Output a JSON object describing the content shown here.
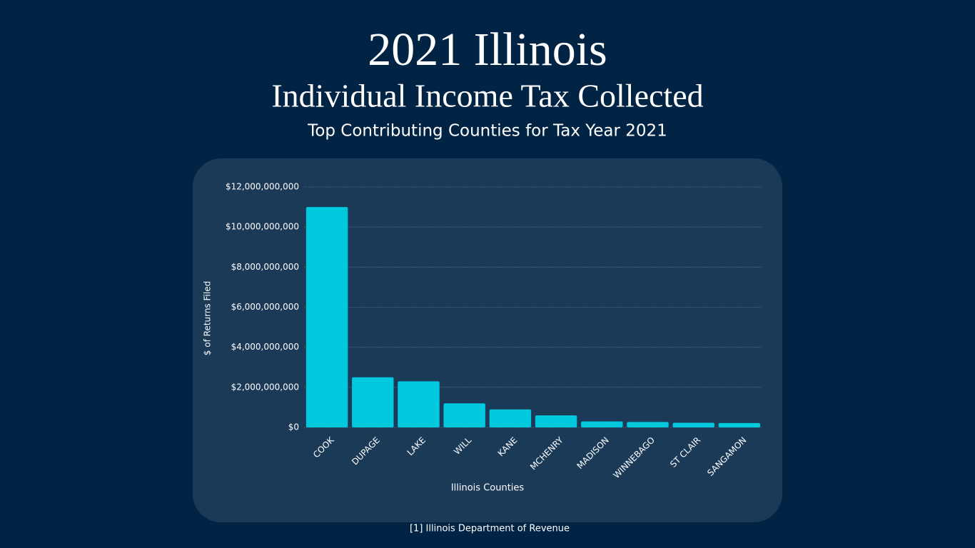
{
  "chart_data": {
    "type": "bar",
    "title": "2021 Illinois",
    "subtitle": "Individual Income Tax Collected",
    "caption": "Top Contributing Counties for Tax Year 2021",
    "x_label": "Illinois Counties",
    "y_label": "$ of Returns Filed",
    "source": "[1] Illinois Department of Revenue",
    "categories": [
      "COOK",
      "DUPAGE",
      "LAKE",
      "WILL",
      "KANE",
      "MCHENRY",
      "MADISON",
      "WINNEBAGO",
      "ST CLAIR",
      "SANGAMON"
    ],
    "values": [
      11000000000,
      2500000000,
      2300000000,
      1200000000,
      900000000,
      600000000,
      300000000,
      270000000,
      230000000,
      220000000
    ],
    "color": "#00c9de",
    "ylim": [
      0,
      12000000000
    ],
    "yticks": [
      {
        "value": 0,
        "label": "$0"
      },
      {
        "value": 2000000000,
        "label": "$2,000,000,000"
      },
      {
        "value": 4000000000,
        "label": "$4,000,000,000"
      },
      {
        "value": 6000000000,
        "label": "$6,000,000,000"
      },
      {
        "value": 8000000000,
        "label": "$8,000,000,000"
      },
      {
        "value": 10000000000,
        "label": "$10,000,000,000"
      },
      {
        "value": 12000000000,
        "label": "$12,000,000,000"
      }
    ],
    "grid": true
  }
}
